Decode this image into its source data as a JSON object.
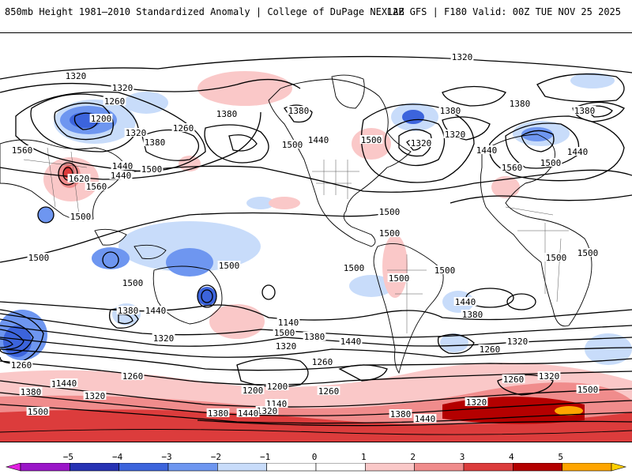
{
  "header": {
    "title_left": "850mb Height 1981–2010 Standardized Anomaly | College of DuPage NEXLAB",
    "title_right": "12Z GFS | F180 Valid: 00Z TUE NOV 25 2025"
  },
  "contour_labels": [
    {
      "text": "1320"
    },
    {
      "text": "1320"
    },
    {
      "text": "1320"
    },
    {
      "text": "1260"
    },
    {
      "text": "1200"
    },
    {
      "text": "1260"
    },
    {
      "text": "1320"
    },
    {
      "text": "1380"
    },
    {
      "text": "1560"
    },
    {
      "text": "1620"
    },
    {
      "text": "1560"
    },
    {
      "text": "1440"
    },
    {
      "text": "1500"
    },
    {
      "text": "1440"
    },
    {
      "text": "1380"
    },
    {
      "text": "1500"
    },
    {
      "text": "1440"
    },
    {
      "text": "1500"
    },
    {
      "text": "1380"
    },
    {
      "text": "1320"
    },
    {
      "text": "1380"
    },
    {
      "text": "1320"
    },
    {
      "text": "1440"
    },
    {
      "text": "1380"
    },
    {
      "text": "1380"
    },
    {
      "text": "1440"
    },
    {
      "text": "1500"
    },
    {
      "text": "1560"
    },
    {
      "text": "1500"
    },
    {
      "text": "1500"
    },
    {
      "text": "1500"
    },
    {
      "text": "1500"
    },
    {
      "text": "1500"
    },
    {
      "text": "1500"
    },
    {
      "text": "1500"
    },
    {
      "text": "1500"
    },
    {
      "text": "1500"
    },
    {
      "text": "1500"
    },
    {
      "text": "1500"
    },
    {
      "text": "1380"
    },
    {
      "text": "1440"
    },
    {
      "text": "1320"
    },
    {
      "text": "1260"
    },
    {
      "text": "1140"
    },
    {
      "text": "1500"
    },
    {
      "text": "1380"
    },
    {
      "text": "1440"
    },
    {
      "text": "1320"
    },
    {
      "text": "1260"
    },
    {
      "text": "1200"
    },
    {
      "text": "1140"
    },
    {
      "text": "1440"
    },
    {
      "text": "1380"
    },
    {
      "text": "1260"
    },
    {
      "text": "1320"
    },
    {
      "text": "1260"
    },
    {
      "text": "1440"
    },
    {
      "text": "1380"
    },
    {
      "text": "1500"
    },
    {
      "text": "1320"
    },
    {
      "text": "1260"
    },
    {
      "text": "1200"
    },
    {
      "text": "1260"
    },
    {
      "text": "1320"
    },
    {
      "text": "1380"
    },
    {
      "text": "1440"
    },
    {
      "text": "1380"
    },
    {
      "text": "1440"
    },
    {
      "text": "1320"
    },
    {
      "text": "1500"
    },
    {
      "text": "1260"
    },
    {
      "text": "1320"
    }
  ],
  "colorbar": {
    "ticks": [
      "−5",
      "−4",
      "−3",
      "−2",
      "−1",
      "0",
      "1",
      "2",
      "3",
      "4",
      "5"
    ],
    "colors": [
      "#9a16c8",
      "#2632b4",
      "#3c64dc",
      "#6e96f0",
      "#c8dcfa",
      "#ffffff",
      "#ffffff",
      "#fac8c8",
      "#f08c8c",
      "#dc3c3c",
      "#b40000",
      "#ffa500"
    ],
    "end_low_color": "#e020e0",
    "end_high_color": "#ffd000"
  },
  "colors": {
    "land_border": "#000000",
    "contour": "#000000"
  }
}
